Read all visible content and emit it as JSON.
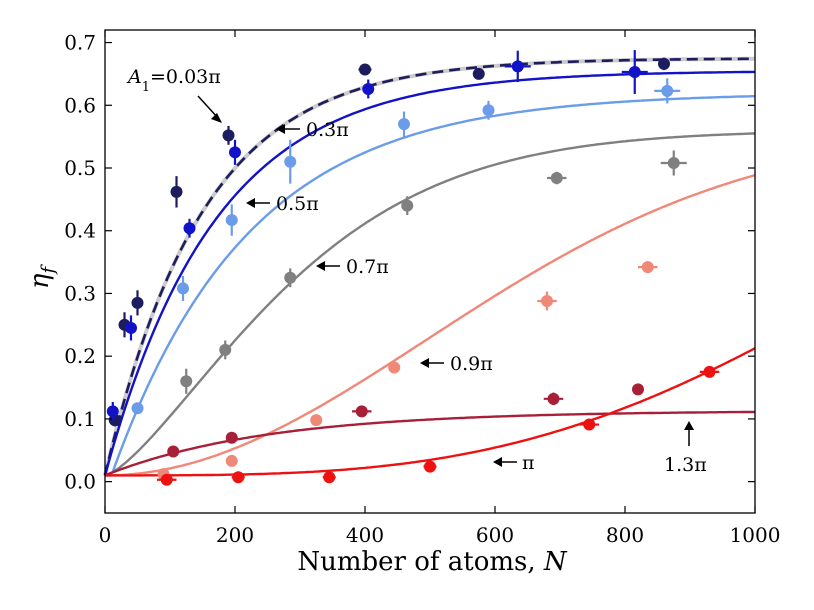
{
  "chart_data": {
    "type": "scatter",
    "xlabel_text": "Number of atoms,",
    "xlabel_var": "N",
    "ylabel_var": "η",
    "ylabel_sub": "f",
    "xlim": [
      0,
      1000
    ],
    "ylim": [
      -0.05,
      0.72
    ],
    "x_ticks": [
      0,
      200,
      400,
      600,
      800,
      1000
    ],
    "x_tick_labels": [
      "0",
      "200",
      "400",
      "600",
      "800",
      "1000"
    ],
    "y_ticks": [
      0.0,
      0.1,
      0.2,
      0.3,
      0.4,
      0.5,
      0.6,
      0.7
    ],
    "y_tick_labels": [
      "0.0",
      "0.1",
      "0.2",
      "0.3",
      "0.4",
      "0.5",
      "0.6",
      "0.7"
    ],
    "grid": false,
    "legend": "none",
    "annotations": [
      {
        "id": "a003",
        "italic": "A",
        "sub": "1",
        "rest": "=0.03π"
      },
      {
        "id": "a03",
        "text": "0.3π"
      },
      {
        "id": "a05",
        "text": "0.5π"
      },
      {
        "id": "a07",
        "text": "0.7π"
      },
      {
        "id": "a09",
        "text": "0.9π"
      },
      {
        "id": "api",
        "text": "π"
      },
      {
        "id": "a13",
        "text": "1.3π"
      }
    ],
    "series": [
      {
        "color": "#1c1c5e",
        "dashed_fit": true,
        "fit": {
          "model": "exp",
          "a": 0.675,
          "b": 0.01,
          "n0": 0,
          "tau": 150
        },
        "points": [
          {
            "x": 15,
            "y": 0.098,
            "yerr": 0.01
          },
          {
            "x": 30,
            "y": 0.25,
            "yerr": 0.02
          },
          {
            "x": 50,
            "y": 0.285,
            "yerr": 0.02
          },
          {
            "x": 110,
            "y": 0.462,
            "yerr": 0.025
          },
          {
            "x": 190,
            "y": 0.552,
            "yerr": 0.015
          },
          {
            "x": 400,
            "y": 0.657,
            "yerr": 0.008,
            "xerr": 10
          },
          {
            "x": 575,
            "y": 0.65,
            "yerr": 0.006
          },
          {
            "x": 860,
            "y": 0.666,
            "yerr": 0.01
          }
        ]
      },
      {
        "color": "#1212c8",
        "dashed_fit": false,
        "fit": {
          "model": "exp",
          "a": 0.655,
          "b": 0.01,
          "n0": 0,
          "tau": 170
        },
        "points": [
          {
            "x": 12,
            "y": 0.112,
            "yerr": 0.015
          },
          {
            "x": 40,
            "y": 0.245,
            "yerr": 0.02
          },
          {
            "x": 130,
            "y": 0.404,
            "yerr": 0.015
          },
          {
            "x": 200,
            "y": 0.525,
            "yerr": 0.02
          },
          {
            "x": 405,
            "y": 0.626,
            "yerr": 0.015
          },
          {
            "x": 635,
            "y": 0.662,
            "yerr": 0.025,
            "xerr": 20
          },
          {
            "x": 815,
            "y": 0.653,
            "yerr": 0.035,
            "xerr": 20
          }
        ]
      },
      {
        "color": "#6a9cea",
        "dashed_fit": false,
        "fit": {
          "model": "exp",
          "a": 0.62,
          "b": 0.01,
          "n0": 10,
          "tau": 210
        },
        "points": [
          {
            "x": 50,
            "y": 0.117
          },
          {
            "x": 120,
            "y": 0.308,
            "yerr": 0.02
          },
          {
            "x": 195,
            "y": 0.417,
            "yerr": 0.025
          },
          {
            "x": 285,
            "y": 0.51,
            "yerr": 0.035
          },
          {
            "x": 460,
            "y": 0.57,
            "yerr": 0.02
          },
          {
            "x": 590,
            "y": 0.592,
            "yerr": 0.015
          },
          {
            "x": 865,
            "y": 0.623,
            "yerr": 0.02,
            "xerr": 20
          }
        ]
      },
      {
        "color": "#808080",
        "dashed_fit": false,
        "fit": {
          "model": "sigmoid",
          "a": 0.56,
          "b": 0.01,
          "n0": 0,
          "tau": 330,
          "p": 1.4
        },
        "points": [
          {
            "x": 125,
            "y": 0.16,
            "yerr": 0.02
          },
          {
            "x": 185,
            "y": 0.21,
            "yerr": 0.015
          },
          {
            "x": 285,
            "y": 0.325,
            "yerr": 0.015
          },
          {
            "x": 465,
            "y": 0.44,
            "yerr": 0.015
          },
          {
            "x": 695,
            "y": 0.484,
            "yerr": 0.01,
            "xerr": 15
          },
          {
            "x": 875,
            "y": 0.508,
            "yerr": 0.02,
            "xerr": 20
          }
        ]
      },
      {
        "color": "#f08878",
        "dashed_fit": false,
        "fit": {
          "model": "sigmoid",
          "a": 0.56,
          "b": 0.01,
          "n0": 0,
          "tau": 700,
          "p": 2.0
        },
        "points": [
          {
            "x": 90,
            "y": 0.012
          },
          {
            "x": 195,
            "y": 0.033
          },
          {
            "x": 325,
            "y": 0.098
          },
          {
            "x": 445,
            "y": 0.182
          },
          {
            "x": 680,
            "y": 0.288,
            "yerr": 0.015,
            "xerr": 15
          },
          {
            "x": 835,
            "y": 0.342,
            "xerr": 15
          }
        ]
      },
      {
        "color": "#a82038",
        "dashed_fit": false,
        "fit": {
          "model": "exp",
          "a": 0.113,
          "b": 0.01,
          "n0": 0,
          "tau": 250
        },
        "points": [
          {
            "x": 105,
            "y": 0.048
          },
          {
            "x": 195,
            "y": 0.07
          },
          {
            "x": 395,
            "y": 0.112,
            "xerr": 15
          },
          {
            "x": 690,
            "y": 0.132,
            "yerr": 0.01,
            "xerr": 15
          },
          {
            "x": 820,
            "y": 0.147
          }
        ]
      },
      {
        "color": "#ee1111",
        "dashed_fit": false,
        "fit": {
          "model": "sigmoid",
          "a": 0.6,
          "b": 0.01,
          "n0": 0,
          "tau": 1300,
          "p": 3.3
        },
        "points": [
          {
            "x": 95,
            "y": 0.003,
            "xerr": 15
          },
          {
            "x": 205,
            "y": 0.007,
            "xerr": 10
          },
          {
            "x": 345,
            "y": 0.007,
            "xerr": 10
          },
          {
            "x": 500,
            "y": 0.024,
            "xerr": 10
          },
          {
            "x": 745,
            "y": 0.091,
            "xerr": 15
          },
          {
            "x": 930,
            "y": 0.175,
            "xerr": 15
          }
        ]
      }
    ]
  }
}
